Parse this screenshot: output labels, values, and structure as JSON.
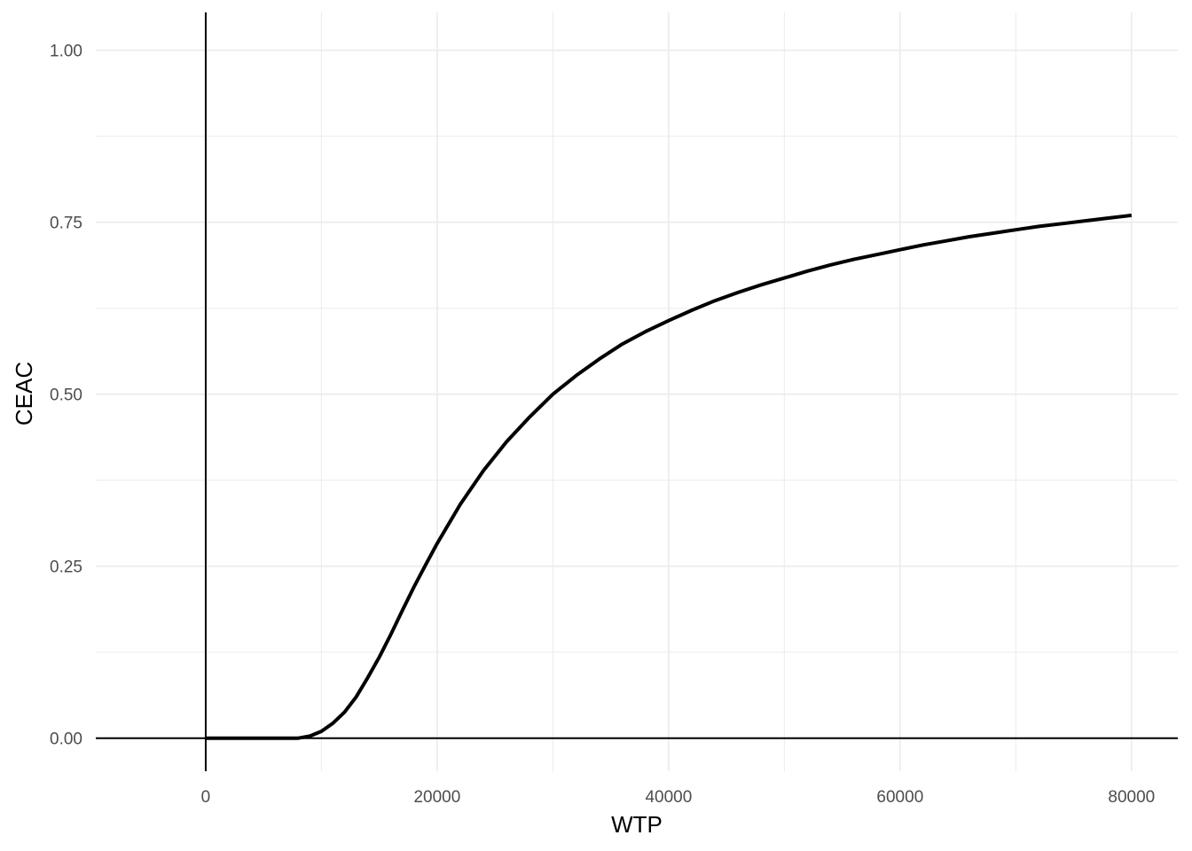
{
  "chart_data": {
    "type": "line",
    "xlabel": "WTP",
    "ylabel": "CEAC",
    "xlim": [
      -9500,
      84000
    ],
    "ylim": [
      -0.048,
      1.055
    ],
    "x_ticks": [
      0,
      20000,
      40000,
      60000,
      80000
    ],
    "x_tick_labels": [
      "0",
      "20000",
      "40000",
      "60000",
      "80000"
    ],
    "y_ticks": [
      0,
      0.25,
      0.5,
      0.75,
      1
    ],
    "y_tick_labels": [
      "0.00",
      "0.25",
      "0.50",
      "0.75",
      "1.00"
    ],
    "x_minor_ticks": [
      10000,
      30000,
      50000,
      70000
    ],
    "y_minor_ticks": [
      0.125,
      0.375,
      0.625,
      0.875
    ],
    "grid": true,
    "reference_lines": {
      "x": 0,
      "y": 0
    },
    "colors": {
      "line": "#000000",
      "grid": "#ebebeb",
      "ref_line": "#000000"
    },
    "series": [
      {
        "x": [
          0,
          2000,
          4000,
          6000,
          8000,
          9000,
          10000,
          11000,
          12000,
          13000,
          14000,
          15000,
          16000,
          17000,
          18000,
          19000,
          20000,
          22000,
          24000,
          26000,
          28000,
          30000,
          32000,
          34000,
          36000,
          38000,
          40000,
          42000,
          44000,
          46000,
          48000,
          50000,
          52000,
          54000,
          56000,
          58000,
          60000,
          62000,
          64000,
          66000,
          68000,
          70000,
          72000,
          74000,
          76000,
          78000,
          80000
        ],
        "y": [
          0,
          0,
          0,
          0,
          0,
          0.003,
          0.01,
          0.022,
          0.038,
          0.06,
          0.088,
          0.118,
          0.151,
          0.186,
          0.22,
          0.252,
          0.283,
          0.34,
          0.389,
          0.431,
          0.467,
          0.5,
          0.527,
          0.551,
          0.573,
          0.591,
          0.607,
          0.622,
          0.636,
          0.648,
          0.659,
          0.669,
          0.679,
          0.688,
          0.696,
          0.703,
          0.71,
          0.717,
          0.723,
          0.729,
          0.734,
          0.739,
          0.744,
          0.748,
          0.752,
          0.756,
          0.76
        ]
      }
    ]
  }
}
